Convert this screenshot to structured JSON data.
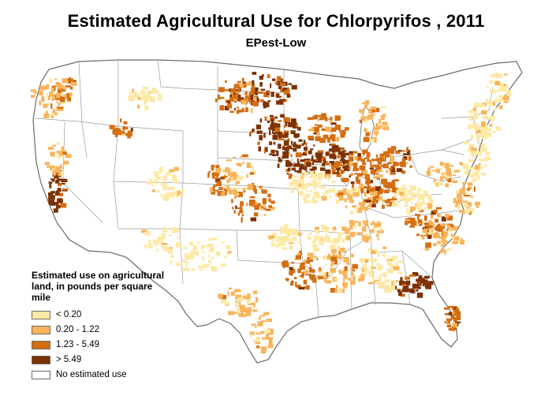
{
  "title": "Estimated Agricultural Use for Chlorpyrifos , 2011",
  "subtitle": "EPest-Low",
  "legend": {
    "title": "Estimated use on agricultural land, in pounds per square mile",
    "items": [
      {
        "label": "< 0.20",
        "color": "#fde9a5"
      },
      {
        "label": "0.20 - 1.22",
        "color": "#f9b45a"
      },
      {
        "label": "1.23 - 5.49",
        "color": "#d46e12"
      },
      {
        "label": "> 5.49",
        "color": "#7d3204"
      },
      {
        "label": "No estimated use",
        "color": "#ffffff"
      }
    ]
  },
  "colors": {
    "background": "#ffffff",
    "state_border": "#9a9a9a",
    "nation_border": "#6a6a6a"
  }
}
